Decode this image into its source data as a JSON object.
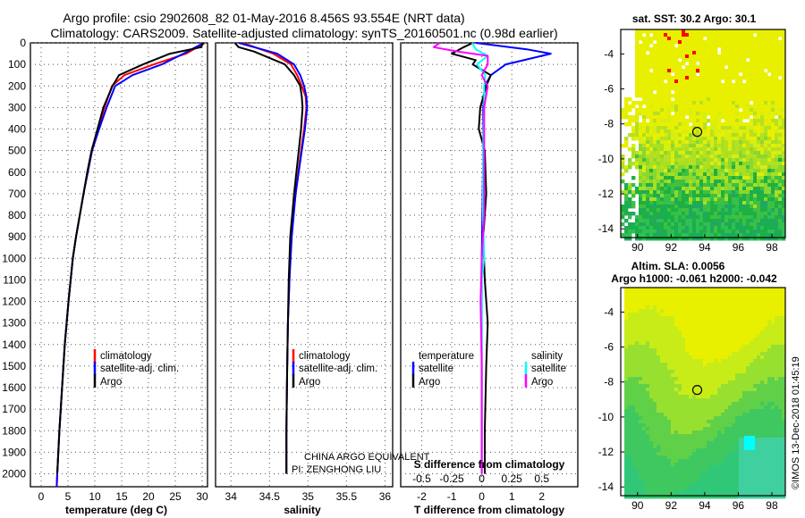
{
  "title": {
    "line1": "Argo profile: csio 2902608_82 01-May-2016 8.456S 93.554E (NRT data)",
    "line2": "Climatology: CARS2009. Satellite-adjusted climatology: synTS_20160501.nc (0.98d earlier)"
  },
  "depth_ticks": [
    "0",
    "100",
    "200",
    "300",
    "400",
    "500",
    "600",
    "700",
    "800",
    "900",
    "1000",
    "1100",
    "1200",
    "1300",
    "1400",
    "1500",
    "1600",
    "1700",
    "1800",
    "1900",
    "2000"
  ],
  "colors": {
    "climatology": "#ff0000",
    "satellite": "#0000ff",
    "argo": "#000000",
    "sat_salinity": "#00ffff",
    "clim_salinity_diff": "#ff00ff"
  },
  "chart_data": [
    {
      "type": "line",
      "name": "temperature",
      "xlabel": "temperature (deg C)",
      "ylabel": "depth",
      "xlim": [
        -2,
        31
      ],
      "ylim": [
        2060,
        0
      ],
      "xticks": [
        0,
        5,
        10,
        15,
        20,
        25,
        30
      ],
      "legend": {
        "placement": "lower-right",
        "entries": [
          "climatology",
          "satellite-adj. clim.",
          "Argo"
        ]
      },
      "series": [
        {
          "name": "climatology",
          "depth": [
            0,
            50,
            100,
            150,
            200,
            300,
            400,
            500,
            600,
            700,
            800,
            900,
            1000,
            1200,
            1400,
            1600,
            1800,
            2000,
            2060
          ],
          "values": [
            30.5,
            27,
            21,
            15.5,
            13.2,
            11.8,
            10.6,
            9.4,
            8.6,
            7.9,
            7.2,
            6.5,
            5.9,
            5.1,
            4.4,
            3.9,
            3.4,
            3.0,
            2.9
          ]
        },
        {
          "name": "satellite-adj. clim.",
          "depth": [
            0,
            50,
            100,
            150,
            200,
            300,
            400,
            500,
            600,
            700,
            800,
            900,
            1000,
            1200,
            1400,
            1600,
            1800,
            2000,
            2060
          ],
          "values": [
            30.3,
            26.5,
            22.5,
            17,
            13.8,
            12.2,
            10.8,
            9.5,
            8.7,
            7.9,
            7.2,
            6.5,
            5.9,
            5.1,
            4.4,
            3.9,
            3.4,
            3.0,
            2.9
          ]
        },
        {
          "name": "Argo",
          "depth": [
            0,
            20,
            50,
            100,
            150,
            200,
            300,
            400,
            500,
            600,
            700,
            800,
            900,
            1000,
            1200,
            1400,
            1600,
            1800,
            2000
          ],
          "values": [
            30.2,
            29.8,
            24,
            19,
            14.5,
            13.3,
            11.6,
            10.5,
            9.4,
            8.6,
            7.9,
            7.2,
            6.5,
            5.9,
            5.1,
            4.4,
            3.9,
            3.4,
            3.0
          ]
        }
      ]
    },
    {
      "type": "line",
      "name": "salinity",
      "xlabel": "salinity",
      "ylabel": "depth",
      "xlim": [
        33.8,
        36.1
      ],
      "ylim": [
        2060,
        0
      ],
      "xticks": [
        "34",
        "34.5",
        "35",
        "35.5",
        "36"
      ],
      "legend": {
        "placement": "lower-right",
        "entries": [
          "climatology",
          "satellite-adj. clim.",
          "Argo"
        ]
      },
      "annotations": [
        "CHINA ARGO EQUIVALENT",
        "PI: ZENGHONG LIU"
      ],
      "series": [
        {
          "name": "climatology",
          "depth": [
            0,
            50,
            100,
            150,
            200,
            250,
            300,
            400,
            500,
            700,
            900,
            1100,
            1300,
            1500,
            1800,
            2000
          ],
          "values": [
            34.15,
            34.55,
            34.78,
            34.86,
            34.92,
            34.97,
            34.98,
            34.95,
            34.91,
            34.84,
            34.78,
            34.76,
            34.74,
            34.73,
            34.72,
            34.72
          ]
        },
        {
          "name": "satellite-adj. clim.",
          "depth": [
            0,
            30,
            50,
            100,
            150,
            200,
            250,
            300,
            400,
            500,
            700,
            900,
            1100,
            1300,
            1500,
            1800,
            2000
          ],
          "values": [
            34.1,
            34.4,
            34.6,
            34.82,
            34.9,
            34.95,
            34.98,
            34.99,
            34.96,
            34.92,
            34.84,
            34.79,
            34.76,
            34.74,
            34.73,
            34.72,
            34.72
          ]
        },
        {
          "name": "Argo",
          "depth": [
            0,
            20,
            40,
            100,
            150,
            200,
            250,
            300,
            400,
            500,
            700,
            900,
            1100,
            1300,
            1500,
            1800,
            2000
          ],
          "values": [
            34.05,
            34.1,
            34.3,
            34.7,
            34.82,
            34.9,
            34.92,
            34.93,
            34.91,
            34.88,
            34.82,
            34.77,
            34.75,
            34.74,
            34.73,
            34.72,
            34.72
          ]
        }
      ]
    },
    {
      "type": "line",
      "name": "difference-from-climatology",
      "xlabel": "T difference from climatology",
      "x2label": "S difference from climatology",
      "ylabel": "depth",
      "xlim": [
        -2.7,
        3.2
      ],
      "ylim": [
        2060,
        0
      ],
      "xticks": [
        "-2",
        "-1",
        "0",
        "1",
        "2"
      ],
      "x2ticks": [
        "-0.5",
        "-0.25",
        "0",
        "0.25",
        "0.5"
      ],
      "legend": {
        "placement": "lower-right",
        "temperature_label": "temperature",
        "salinity_label": "salinity",
        "entries": [
          "satellite",
          "Argo"
        ]
      },
      "series": [
        {
          "name": "temperature satellite",
          "depth": [
            0,
            30,
            50,
            100,
            150,
            200,
            300,
            500,
            800,
            1000,
            1200,
            1500,
            1800,
            2000
          ],
          "values": [
            -0.2,
            1.5,
            2.3,
            0.8,
            0.3,
            0.1,
            0.05,
            0.05,
            0.02,
            0.0,
            0.0,
            0.0,
            0.0,
            0.0
          ]
        },
        {
          "name": "temperature Argo",
          "depth": [
            0,
            20,
            50,
            80,
            100,
            150,
            200,
            250,
            300,
            400,
            500,
            700,
            900,
            1100,
            1300,
            1500,
            1800,
            2000
          ],
          "values": [
            -0.3,
            -0.6,
            -1.0,
            -0.2,
            -0.3,
            0.3,
            0.15,
            0.05,
            -0.05,
            -0.1,
            0.1,
            0.15,
            0.05,
            0.1,
            0.2,
            0.15,
            0.1,
            0.1
          ]
        },
        {
          "name": "salinity satellite",
          "depth": [
            0,
            30,
            60,
            100,
            150,
            200,
            300,
            500,
            800,
            1000,
            1100,
            1200,
            1300,
            1500,
            1800,
            2000
          ],
          "values": [
            -0.08,
            -0.05,
            0.05,
            -0.04,
            0.03,
            0.02,
            0.02,
            0.01,
            0.01,
            0.02,
            0.0,
            0.0,
            0.0,
            0.0,
            0.0,
            0.0
          ]
        },
        {
          "name": "salinity Argo",
          "depth": [
            0,
            20,
            40,
            60,
            100,
            150,
            200,
            300,
            500,
            800,
            1000,
            1200,
            1500,
            1800,
            2000
          ],
          "values": [
            -0.35,
            -0.4,
            -0.2,
            0.05,
            0.05,
            0.0,
            0.05,
            0.02,
            0.02,
            0.02,
            0.0,
            -0.01,
            0.0,
            0.0,
            0.0
          ]
        }
      ]
    },
    {
      "type": "heatmap",
      "name": "sat-sst-map",
      "title": "sat. SST: 30.2  Argo: 30.1",
      "xticks": [
        "90",
        "92",
        "94",
        "96",
        "98"
      ],
      "yticks": [
        "-4",
        "-6",
        "-8",
        "-10",
        "-12",
        "-14"
      ],
      "xlim": [
        89,
        98.8
      ],
      "ylim": [
        -14.5,
        -2.6
      ],
      "marker": {
        "lon": 93.554,
        "lat": -8.456
      }
    },
    {
      "type": "heatmap",
      "name": "altim-sla-map",
      "title": "Altim. SLA: 0.0056",
      "subtitle": "Argo h1000: -0.061 h2000: -0.042",
      "xticks": [
        "90",
        "92",
        "94",
        "96",
        "98"
      ],
      "yticks": [
        "-4",
        "-6",
        "-8",
        "-10",
        "-12",
        "-14"
      ],
      "xlim": [
        89,
        98.8
      ],
      "ylim": [
        -14.5,
        -2.6
      ],
      "marker": {
        "lon": 93.554,
        "lat": -8.456
      }
    }
  ],
  "credit": "©IMOS 13-Dec-2018 01:45:19"
}
